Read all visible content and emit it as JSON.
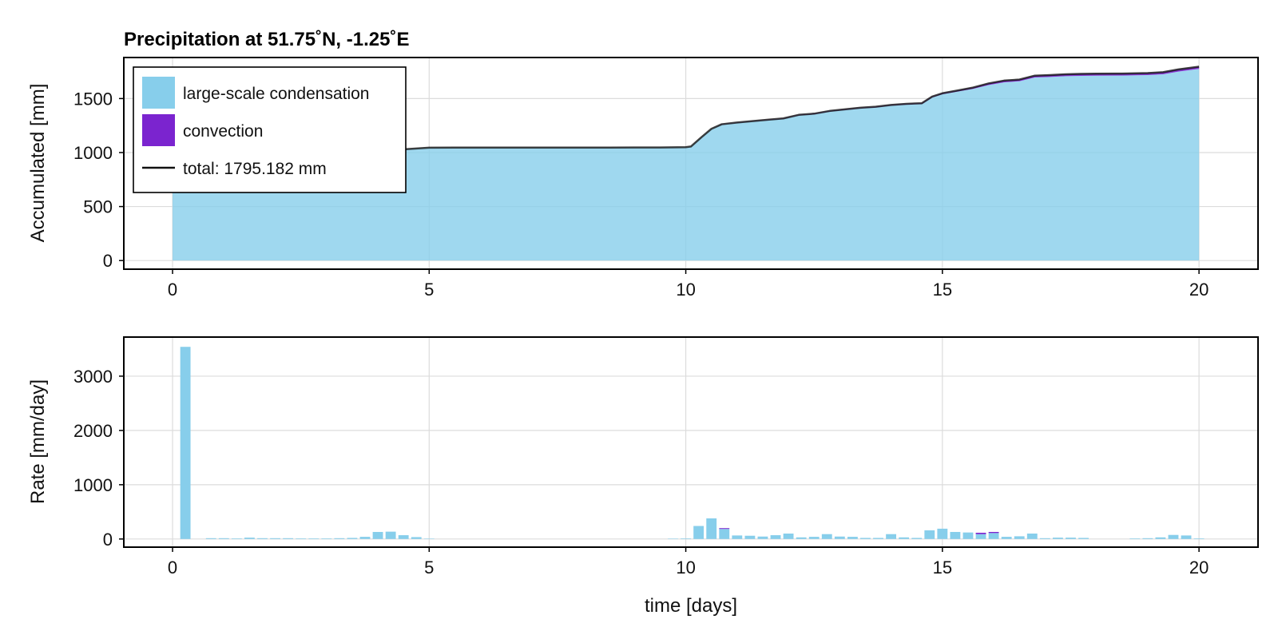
{
  "chart_data": [
    {
      "type": "area",
      "title": "Precipitation at 51.75˚N, -1.25˚E",
      "xlabel": "",
      "ylabel": "Accumulated [mm]",
      "xlim": [
        -0.95,
        21.15
      ],
      "ylim": [
        -80,
        1880
      ],
      "xticks": [
        0,
        5,
        10,
        15,
        20
      ],
      "xtick_labels": [
        "0",
        "5",
        "10",
        "15",
        "20"
      ],
      "yticks": [
        0,
        500,
        1000,
        1500
      ],
      "ytick_labels": [
        "0",
        "500",
        "1000",
        "1500"
      ],
      "grid": true,
      "legend_position": "top-left",
      "colors": {
        "large_scale": "#87ceeb",
        "convection": "#7b24cf",
        "total": "#111111"
      },
      "legend": [
        {
          "label": "large-scale condensation",
          "kind": "patch",
          "color": "#87ceeb"
        },
        {
          "label": "convection",
          "kind": "patch",
          "color": "#7b24cf"
        },
        {
          "label": "total: 1795.182 mm",
          "kind": "line",
          "color": "#111111"
        }
      ],
      "x": [
        0,
        0.5,
        1,
        1.5,
        2,
        2.5,
        3,
        3.5,
        4,
        4.5,
        5,
        5.5,
        6,
        6.5,
        7,
        7.5,
        8,
        8.5,
        9,
        9.5,
        10,
        10.1,
        10.3,
        10.5,
        10.7,
        11,
        11.3,
        11.6,
        11.9,
        12.2,
        12.5,
        12.8,
        13.1,
        13.4,
        13.7,
        14,
        14.3,
        14.6,
        14.8,
        15,
        15.3,
        15.6,
        15.9,
        16.2,
        16.5,
        16.8,
        17.1,
        17.4,
        17.7,
        18,
        18.5,
        19,
        19.3,
        19.6,
        20
      ],
      "large_scale": [
        885,
        892,
        896,
        900,
        905,
        910,
        918,
        927,
        950,
        1030,
        1045,
        1046,
        1046,
        1046,
        1046,
        1046,
        1046,
        1046,
        1047,
        1047,
        1050,
        1056,
        1140,
        1220,
        1260,
        1275,
        1288,
        1300,
        1312,
        1345,
        1355,
        1380,
        1395,
        1410,
        1418,
        1435,
        1445,
        1450,
        1510,
        1540,
        1565,
        1590,
        1625,
        1650,
        1660,
        1695,
        1700,
        1707,
        1710,
        1712,
        1713,
        1717,
        1725,
        1750,
        1775
      ],
      "convection": [
        0,
        0,
        0,
        0,
        0,
        0,
        0,
        0,
        0,
        0,
        0,
        0,
        0,
        0,
        0,
        0,
        0,
        0,
        0,
        0,
        0,
        0,
        0,
        0,
        2,
        3,
        3,
        4,
        4,
        4,
        5,
        5,
        5,
        5,
        6,
        6,
        6,
        7,
        8,
        9,
        10,
        12,
        15,
        16,
        16,
        17,
        17,
        18,
        18,
        18,
        18,
        19,
        19,
        20,
        20
      ],
      "total": [
        885,
        892,
        896,
        900,
        905,
        910,
        918,
        927,
        950,
        1030,
        1045,
        1046,
        1046,
        1046,
        1046,
        1046,
        1046,
        1046,
        1047,
        1047,
        1050,
        1056,
        1140,
        1220,
        1262,
        1278,
        1291,
        1304,
        1316,
        1349,
        1360,
        1385,
        1400,
        1415,
        1424,
        1441,
        1451,
        1457,
        1518,
        1549,
        1575,
        1602,
        1640,
        1666,
        1676,
        1712,
        1717,
        1725,
        1728,
        1730,
        1731,
        1736,
        1744,
        1770,
        1795.182
      ]
    },
    {
      "type": "bar",
      "title": "",
      "xlabel": "time [days]",
      "ylabel": "Rate [mm/day]",
      "xlim": [
        -0.95,
        21.15
      ],
      "ylim": [
        -150,
        3720
      ],
      "xticks": [
        0,
        5,
        10,
        15,
        20
      ],
      "xtick_labels": [
        "0",
        "5",
        "10",
        "15",
        "20"
      ],
      "yticks": [
        0,
        1000,
        2000,
        3000
      ],
      "ytick_labels": [
        "0",
        "1000",
        "2000",
        "3000"
      ],
      "grid": true,
      "colors": {
        "large_scale": "#87ceeb",
        "convection": "#7b24cf"
      },
      "bar_width": 0.2,
      "x": [
        0.25,
        0.75,
        1.0,
        1.25,
        1.5,
        1.75,
        2.0,
        2.25,
        2.5,
        2.75,
        3.0,
        3.25,
        3.5,
        3.75,
        4.0,
        4.25,
        4.5,
        4.75,
        5.0,
        9.75,
        10.0,
        10.25,
        10.5,
        10.75,
        11.0,
        11.25,
        11.5,
        11.75,
        12.0,
        12.25,
        12.5,
        12.75,
        13.0,
        13.25,
        13.5,
        13.75,
        14.0,
        14.25,
        14.5,
        14.75,
        15.0,
        15.25,
        15.5,
        15.75,
        16.0,
        16.25,
        16.5,
        16.75,
        17.0,
        17.25,
        17.5,
        17.75,
        18.75,
        19.0,
        19.25,
        19.5,
        19.75,
        20.0
      ],
      "large_scale": [
        3540,
        15,
        15,
        10,
        25,
        15,
        15,
        15,
        10,
        10,
        10,
        15,
        20,
        40,
        130,
        135,
        70,
        35,
        5,
        5,
        10,
        240,
        380,
        185,
        65,
        60,
        45,
        70,
        100,
        30,
        40,
        90,
        45,
        40,
        20,
        20,
        90,
        30,
        20,
        160,
        190,
        130,
        120,
        90,
        110,
        40,
        50,
        100,
        15,
        25,
        25,
        20,
        10,
        15,
        30,
        75,
        65,
        10
      ],
      "convection": [
        0,
        0,
        0,
        0,
        0,
        0,
        0,
        0,
        0,
        0,
        0,
        0,
        0,
        0,
        0,
        0,
        0,
        0,
        0,
        0,
        0,
        0,
        0,
        15,
        0,
        0,
        0,
        0,
        0,
        0,
        0,
        0,
        0,
        0,
        0,
        0,
        0,
        0,
        0,
        0,
        0,
        0,
        0,
        25,
        20,
        0,
        0,
        0,
        0,
        0,
        0,
        0,
        0,
        0,
        0,
        0,
        0,
        0
      ]
    }
  ]
}
